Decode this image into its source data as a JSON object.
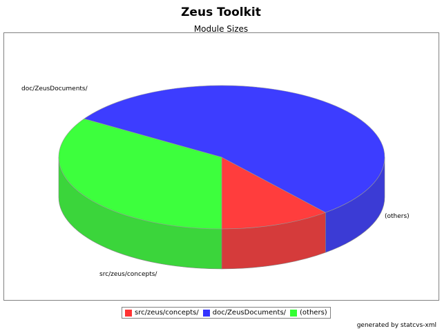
{
  "chart_data": {
    "type": "pie",
    "title": "Zeus Toolkit",
    "subtitle": "Module Sizes",
    "labels": [
      "src/zeus/concepts/",
      "doc/ZeusDocuments/",
      "(others)"
    ],
    "values": [
      11,
      55,
      34
    ],
    "colors": [
      "#ff3333",
      "#3333ff",
      "#33ff33"
    ],
    "legend_position": "bottom"
  },
  "footer": {
    "credit": "generated by statcvs-xml"
  }
}
